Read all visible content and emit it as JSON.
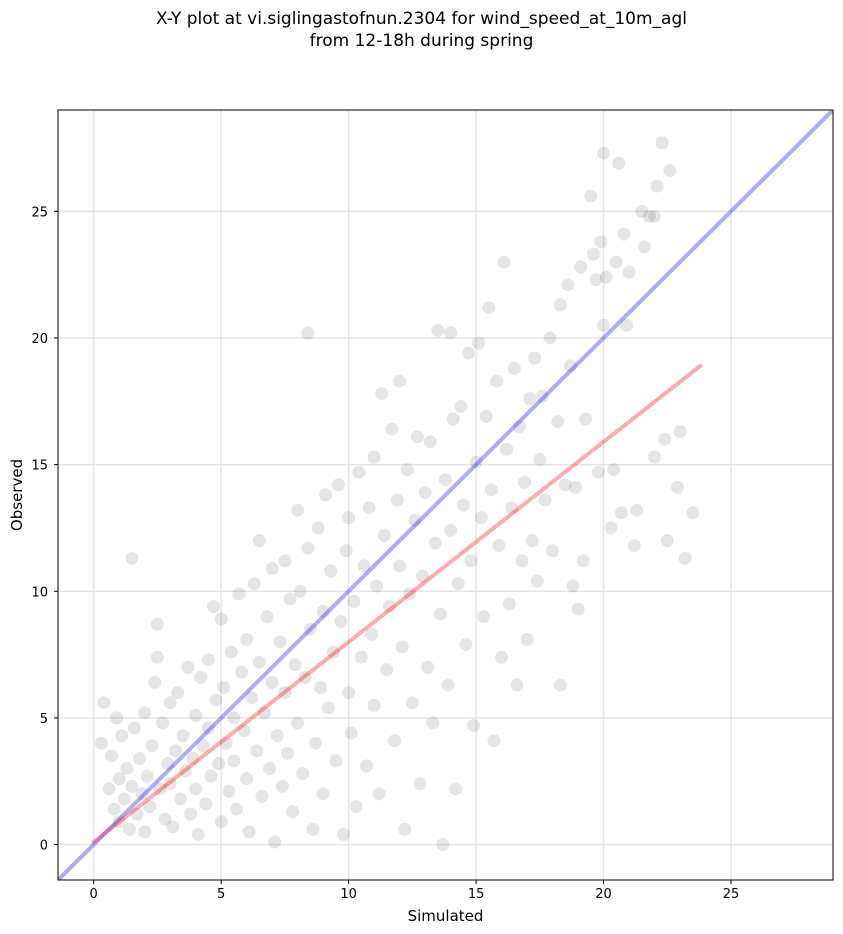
{
  "chart_data": {
    "type": "scatter",
    "title": "X-Y plot at vi.siglingastofnun.2304 for wind_speed_at_10m_agl",
    "subtitle": "from 12-18h during spring",
    "xlabel": "Simulated",
    "ylabel": "Observed",
    "xlim": [
      -1.4,
      29.0
    ],
    "ylim": [
      -1.4,
      29.0
    ],
    "xticks": [
      0,
      5,
      10,
      15,
      20,
      25
    ],
    "yticks": [
      0,
      5,
      10,
      15,
      20,
      25
    ],
    "grid": true,
    "legend": "none",
    "colors": {
      "points": "#000000",
      "identity_line": "#0000ff",
      "regression_line": "#ff0000",
      "grid": "#e6e6e6"
    },
    "series": [
      {
        "kind": "points",
        "points": [
          [
            0.3,
            4.0
          ],
          [
            0.4,
            5.6
          ],
          [
            0.6,
            2.2
          ],
          [
            0.7,
            3.5
          ],
          [
            0.8,
            1.4
          ],
          [
            0.9,
            5.0
          ],
          [
            1.0,
            0.9
          ],
          [
            1.0,
            2.6
          ],
          [
            1.1,
            4.3
          ],
          [
            1.2,
            1.8
          ],
          [
            1.3,
            3.0
          ],
          [
            1.4,
            0.6
          ],
          [
            1.5,
            11.3
          ],
          [
            1.5,
            2.3
          ],
          [
            1.6,
            4.6
          ],
          [
            1.7,
            1.2
          ],
          [
            1.8,
            3.4
          ],
          [
            1.9,
            2.0
          ],
          [
            2.0,
            5.2
          ],
          [
            2.0,
            0.5
          ],
          [
            2.1,
            2.7
          ],
          [
            2.2,
            1.5
          ],
          [
            2.3,
            3.9
          ],
          [
            2.4,
            6.4
          ],
          [
            2.5,
            8.7
          ],
          [
            2.5,
            7.4
          ],
          [
            2.6,
            2.2
          ],
          [
            2.7,
            4.8
          ],
          [
            2.8,
            1.0
          ],
          [
            2.9,
            3.2
          ],
          [
            3.0,
            2.4
          ],
          [
            3.0,
            5.6
          ],
          [
            3.1,
            0.7
          ],
          [
            3.2,
            3.7
          ],
          [
            3.3,
            6.0
          ],
          [
            3.4,
            1.8
          ],
          [
            3.5,
            4.3
          ],
          [
            3.6,
            2.9
          ],
          [
            3.7,
            7.0
          ],
          [
            3.8,
            1.2
          ],
          [
            3.9,
            3.4
          ],
          [
            4.0,
            5.1
          ],
          [
            4.0,
            2.2
          ],
          [
            4.1,
            0.4
          ],
          [
            4.2,
            6.6
          ],
          [
            4.3,
            3.9
          ],
          [
            4.4,
            1.6
          ],
          [
            4.5,
            7.3
          ],
          [
            4.5,
            4.6
          ],
          [
            4.6,
            2.7
          ],
          [
            4.7,
            9.4
          ],
          [
            4.8,
            5.7
          ],
          [
            4.9,
            3.2
          ],
          [
            5.0,
            0.9
          ],
          [
            5.0,
            8.9
          ],
          [
            5.1,
            6.2
          ],
          [
            5.2,
            4.0
          ],
          [
            5.3,
            2.1
          ],
          [
            5.4,
            7.6
          ],
          [
            5.5,
            5.0
          ],
          [
            5.5,
            3.3
          ],
          [
            5.6,
            1.4
          ],
          [
            5.7,
            9.9
          ],
          [
            5.8,
            6.8
          ],
          [
            5.9,
            4.5
          ],
          [
            6.0,
            2.6
          ],
          [
            6.0,
            8.1
          ],
          [
            6.1,
            0.5
          ],
          [
            6.2,
            5.8
          ],
          [
            6.3,
            10.3
          ],
          [
            6.4,
            3.7
          ],
          [
            6.5,
            7.2
          ],
          [
            6.5,
            12.0
          ],
          [
            6.6,
            1.9
          ],
          [
            6.7,
            5.2
          ],
          [
            6.8,
            9.0
          ],
          [
            6.9,
            3.0
          ],
          [
            7.0,
            6.4
          ],
          [
            7.0,
            10.9
          ],
          [
            7.1,
            0.1
          ],
          [
            7.2,
            4.3
          ],
          [
            7.3,
            8.0
          ],
          [
            7.4,
            2.3
          ],
          [
            7.5,
            11.2
          ],
          [
            7.5,
            6.0
          ],
          [
            7.6,
            3.6
          ],
          [
            7.7,
            9.7
          ],
          [
            7.8,
            1.3
          ],
          [
            7.9,
            7.1
          ],
          [
            8.0,
            13.2
          ],
          [
            8.0,
            4.8
          ],
          [
            8.1,
            10.0
          ],
          [
            8.2,
            2.8
          ],
          [
            8.3,
            6.6
          ],
          [
            8.4,
            20.2
          ],
          [
            8.4,
            11.7
          ],
          [
            8.5,
            8.5
          ],
          [
            8.6,
            0.6
          ],
          [
            8.7,
            4.0
          ],
          [
            8.8,
            12.5
          ],
          [
            8.9,
            6.2
          ],
          [
            9.0,
            9.2
          ],
          [
            9.0,
            2.0
          ],
          [
            9.1,
            13.8
          ],
          [
            9.2,
            5.4
          ],
          [
            9.3,
            10.8
          ],
          [
            9.4,
            7.6
          ],
          [
            9.5,
            3.3
          ],
          [
            9.6,
            14.2
          ],
          [
            9.7,
            8.8
          ],
          [
            9.8,
            0.4
          ],
          [
            9.9,
            11.6
          ],
          [
            10.0,
            6.0
          ],
          [
            10.0,
            12.9
          ],
          [
            10.1,
            4.4
          ],
          [
            10.2,
            9.6
          ],
          [
            10.3,
            1.5
          ],
          [
            10.4,
            14.7
          ],
          [
            10.5,
            7.4
          ],
          [
            10.6,
            11.0
          ],
          [
            10.7,
            3.1
          ],
          [
            10.8,
            13.3
          ],
          [
            10.9,
            8.3
          ],
          [
            11.0,
            5.5
          ],
          [
            11.0,
            15.3
          ],
          [
            11.1,
            10.2
          ],
          [
            11.2,
            2.0
          ],
          [
            11.3,
            17.8
          ],
          [
            11.4,
            12.2
          ],
          [
            11.5,
            6.9
          ],
          [
            11.6,
            9.4
          ],
          [
            11.7,
            16.4
          ],
          [
            11.8,
            4.1
          ],
          [
            11.9,
            13.6
          ],
          [
            12.0,
            18.3
          ],
          [
            12.0,
            11.0
          ],
          [
            12.1,
            7.8
          ],
          [
            12.2,
            0.6
          ],
          [
            12.3,
            14.8
          ],
          [
            12.4,
            9.9
          ],
          [
            12.5,
            5.6
          ],
          [
            12.6,
            12.8
          ],
          [
            12.7,
            16.1
          ],
          [
            12.8,
            2.4
          ],
          [
            12.9,
            10.6
          ],
          [
            13.0,
            13.9
          ],
          [
            13.1,
            7.0
          ],
          [
            13.2,
            15.9
          ],
          [
            13.3,
            4.8
          ],
          [
            13.4,
            11.9
          ],
          [
            13.5,
            20.3
          ],
          [
            13.6,
            9.1
          ],
          [
            13.7,
            0.0
          ],
          [
            13.8,
            14.4
          ],
          [
            13.9,
            6.3
          ],
          [
            14.0,
            12.4
          ],
          [
            14.0,
            20.2
          ],
          [
            14.1,
            16.8
          ],
          [
            14.2,
            2.2
          ],
          [
            14.3,
            10.3
          ],
          [
            14.4,
            17.3
          ],
          [
            14.5,
            13.4
          ],
          [
            14.6,
            7.9
          ],
          [
            14.7,
            19.4
          ],
          [
            14.8,
            11.2
          ],
          [
            14.9,
            4.7
          ],
          [
            15.0,
            15.1
          ],
          [
            15.1,
            19.8
          ],
          [
            15.2,
            12.9
          ],
          [
            15.3,
            9.0
          ],
          [
            15.4,
            16.9
          ],
          [
            15.5,
            21.2
          ],
          [
            15.6,
            14.0
          ],
          [
            15.7,
            4.1
          ],
          [
            15.8,
            18.3
          ],
          [
            15.9,
            11.8
          ],
          [
            16.0,
            7.4
          ],
          [
            16.1,
            23.0
          ],
          [
            16.2,
            15.6
          ],
          [
            16.3,
            9.5
          ],
          [
            16.4,
            13.3
          ],
          [
            16.5,
            18.8
          ],
          [
            16.6,
            6.3
          ],
          [
            16.7,
            16.5
          ],
          [
            16.8,
            11.2
          ],
          [
            16.9,
            14.3
          ],
          [
            17.0,
            8.1
          ],
          [
            17.1,
            17.6
          ],
          [
            17.2,
            12.0
          ],
          [
            17.3,
            19.2
          ],
          [
            17.4,
            10.4
          ],
          [
            17.5,
            15.2
          ],
          [
            17.6,
            17.7
          ],
          [
            17.7,
            13.6
          ],
          [
            17.9,
            20.0
          ],
          [
            18.0,
            11.6
          ],
          [
            18.2,
            16.7
          ],
          [
            18.3,
            21.3
          ],
          [
            18.3,
            6.3
          ],
          [
            18.5,
            14.2
          ],
          [
            18.6,
            22.1
          ],
          [
            18.7,
            18.9
          ],
          [
            18.8,
            10.2
          ],
          [
            18.9,
            14.1
          ],
          [
            19.0,
            9.3
          ],
          [
            19.1,
            22.8
          ],
          [
            19.2,
            11.2
          ],
          [
            19.3,
            16.8
          ],
          [
            19.5,
            25.6
          ],
          [
            19.6,
            23.3
          ],
          [
            19.7,
            22.3
          ],
          [
            19.8,
            14.7
          ],
          [
            19.9,
            23.8
          ],
          [
            20.0,
            20.5
          ],
          [
            20.0,
            27.3
          ],
          [
            20.1,
            22.4
          ],
          [
            20.3,
            12.5
          ],
          [
            20.4,
            14.8
          ],
          [
            20.5,
            23.0
          ],
          [
            20.6,
            26.9
          ],
          [
            20.7,
            13.1
          ],
          [
            20.8,
            24.1
          ],
          [
            20.9,
            20.5
          ],
          [
            21.0,
            22.6
          ],
          [
            21.2,
            11.8
          ],
          [
            21.3,
            13.2
          ],
          [
            21.5,
            25.0
          ],
          [
            21.6,
            23.6
          ],
          [
            21.8,
            24.8
          ],
          [
            22.0,
            15.3
          ],
          [
            22.1,
            26.0
          ],
          [
            22.3,
            27.7
          ],
          [
            22.4,
            16.0
          ],
          [
            22.5,
            12.0
          ],
          [
            22.6,
            26.6
          ],
          [
            22.9,
            14.1
          ],
          [
            23.0,
            16.3
          ],
          [
            23.2,
            11.3
          ],
          [
            23.5,
            13.1
          ],
          [
            22.0,
            24.8
          ]
        ]
      },
      {
        "kind": "line",
        "name": "",
        "color": "#0000ff",
        "points": [
          [
            -1.4,
            -1.4
          ],
          [
            29.0,
            29.0
          ]
        ]
      },
      {
        "kind": "line",
        "name": "",
        "color": "#ff0000",
        "points": [
          [
            0.0,
            0.1
          ],
          [
            23.8,
            18.9
          ]
        ]
      }
    ]
  }
}
